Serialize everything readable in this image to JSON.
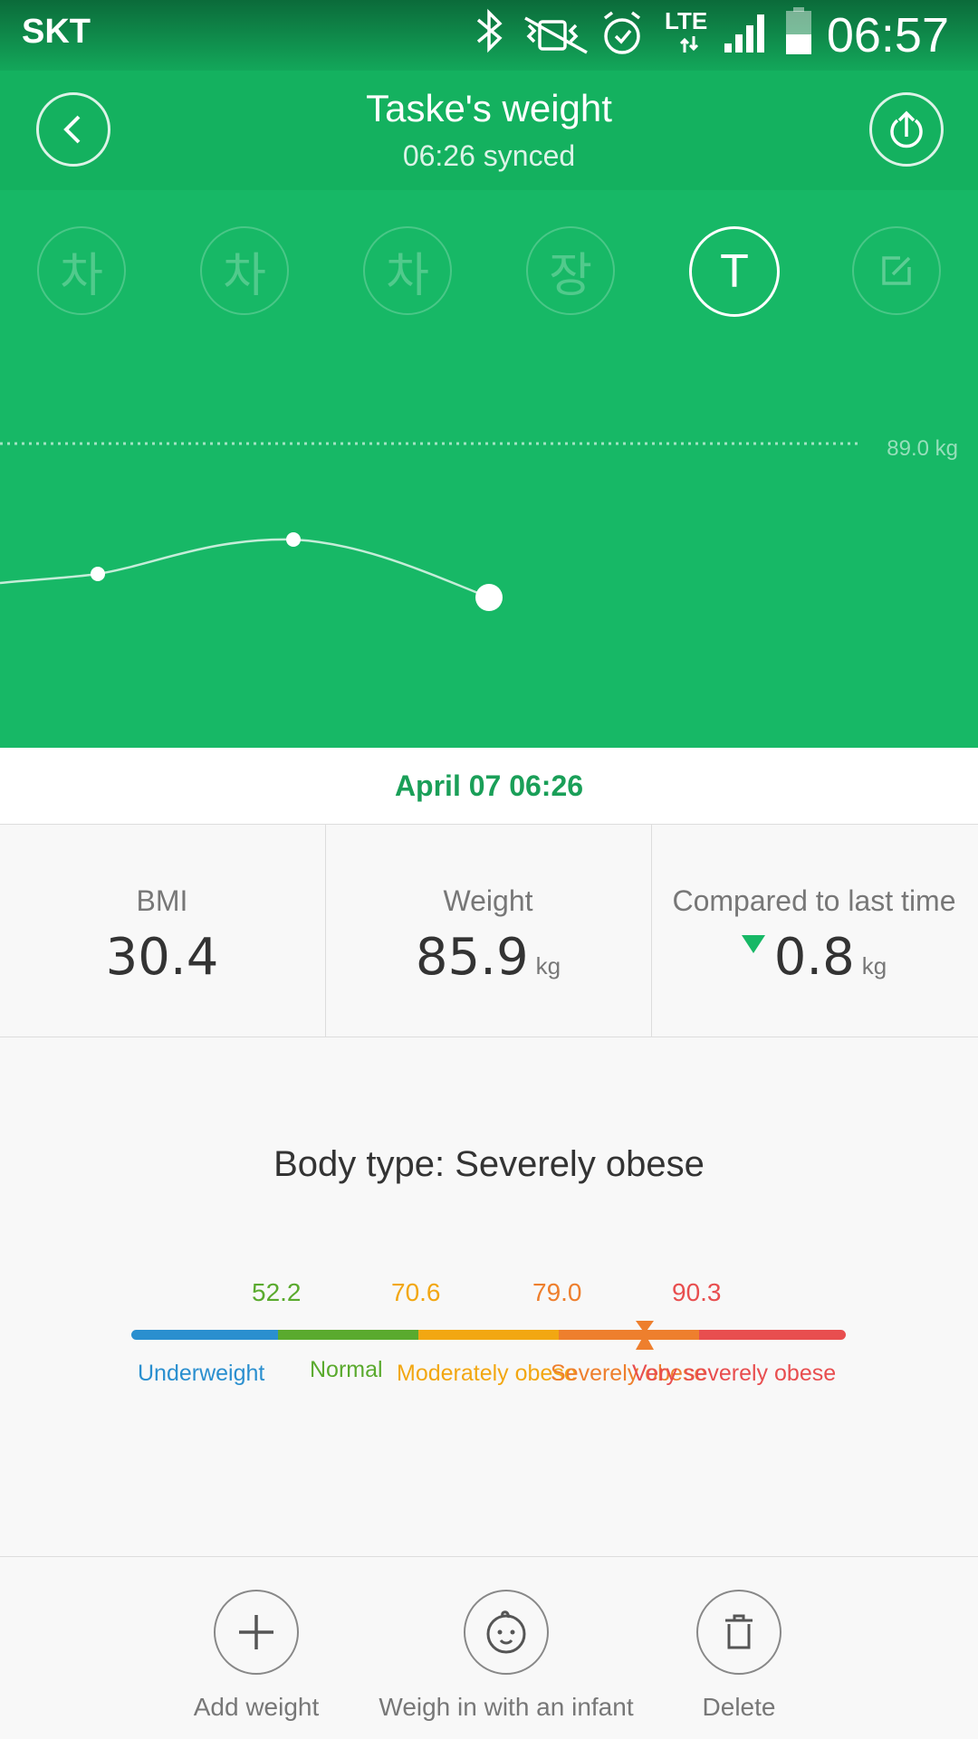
{
  "status_bar": {
    "carrier": "SKT",
    "network": "LTE",
    "time": "06:57"
  },
  "header": {
    "title": "Taske's weight",
    "subtitle": "06:26 synced"
  },
  "profiles": [
    {
      "label": "차",
      "active": false
    },
    {
      "label": "차",
      "active": false
    },
    {
      "label": "차",
      "active": false
    },
    {
      "label": "장",
      "active": false
    },
    {
      "label": "T",
      "active": true
    }
  ],
  "chart": {
    "reference_label": "89.0 kg"
  },
  "measurement": {
    "date": "April 07 06:26",
    "bmi_label": "BMI",
    "bmi_value": "30.4",
    "weight_label": "Weight",
    "weight_value": "85.9",
    "weight_unit": "kg",
    "compare_label": "Compared to last time",
    "compare_value": "0.8",
    "compare_unit": "kg",
    "compare_direction": "down"
  },
  "body_type": {
    "text": "Body type: Severely obese",
    "thresholds": [
      "52.2",
      "70.6",
      "79.0",
      "90.3"
    ],
    "categories": [
      "Underweight",
      "Normal",
      "Moderately obese",
      "Severely obese",
      "Very severely obese"
    ],
    "colors": [
      "#2a8fcf",
      "#5aaa2e",
      "#f2a712",
      "#ee7f2d",
      "#e84e4f"
    ],
    "current_weight": 85.9
  },
  "actions": {
    "add_weight": "Add weight",
    "weigh_infant": "Weigh in with an infant",
    "delete": "Delete"
  }
}
